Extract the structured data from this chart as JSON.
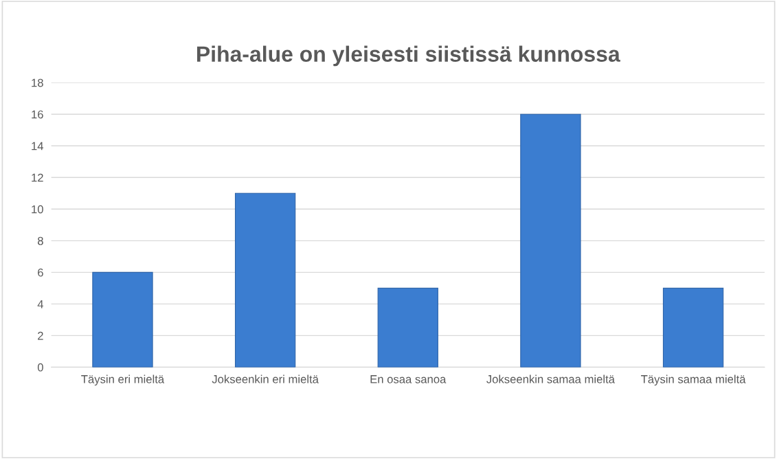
{
  "chart_data": {
    "type": "bar",
    "title": "Piha-alue on yleisesti siistissä kunnossa",
    "categories": [
      "Täysin eri mieltä",
      "Jokseenkin eri mieltä",
      "En osaa sanoa",
      "Jokseenkin samaa mieltä",
      "Täysin samaa mieltä"
    ],
    "values": [
      6,
      11,
      5,
      16,
      5
    ],
    "color": "#3b7dd0",
    "ylim": [
      0,
      18
    ],
    "yticks": [
      0,
      2,
      4,
      6,
      8,
      10,
      12,
      14,
      16,
      18
    ],
    "grid": "y",
    "legend": false
  }
}
